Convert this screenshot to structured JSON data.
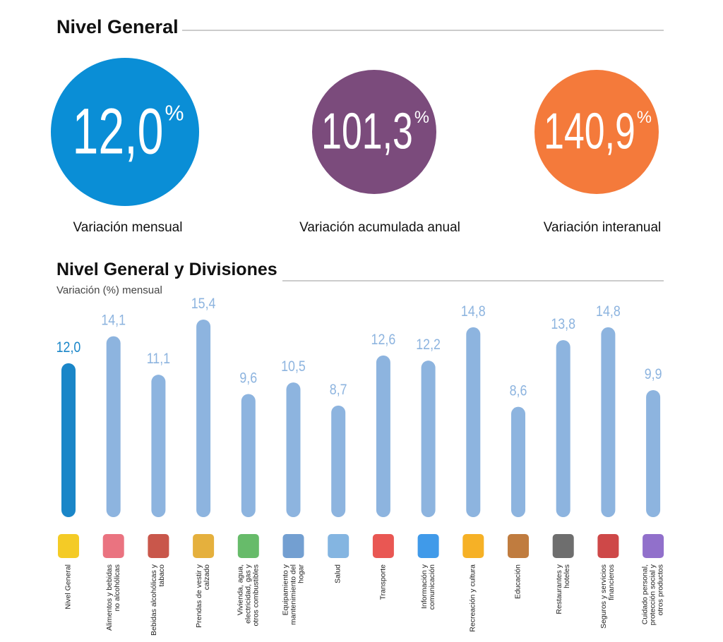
{
  "header": {
    "title": "Nivel General"
  },
  "kpis": [
    {
      "value": 12.0,
      "value_label": "12,0",
      "unit": "%",
      "caption": "Variación mensual",
      "color": "#0a8ed6"
    },
    {
      "value": 101.3,
      "value_label": "101,3",
      "unit": "%",
      "caption": "Variación acumulada anual",
      "color": "#7b4b7c"
    },
    {
      "value": 140.9,
      "value_label": "140,9",
      "unit": "%",
      "caption": "Variación interanual",
      "color": "#f47a3b"
    }
  ],
  "chart_data": {
    "type": "bar",
    "title": "Nivel General y Divisiones",
    "subtitle": "Variación (%) mensual",
    "categories": [
      "Nivel General",
      "Alimentos y bebidas no alcohólicas",
      "Bebidas alcohólicas y tabaco",
      "Prendas de vestir y calzado",
      "Vivienda, agua, electricidad, gas y otros combustibles",
      "Equipamiento y mantenimiento del hogar",
      "Salud",
      "Transporte",
      "Información y comunicación",
      "Recreación y cultura",
      "Educación",
      "Restaurantes y hoteles",
      "Seguros y servicios financieros",
      "Cuidado personal, protección social y otros productos"
    ],
    "values": [
      12.0,
      14.1,
      11.1,
      15.4,
      9.6,
      10.5,
      8.7,
      12.6,
      12.2,
      14.8,
      8.6,
      13.8,
      14.8,
      9.9
    ],
    "value_labels": [
      "12,0",
      "14,1",
      "11,1",
      "15,4",
      "9,6",
      "10,5",
      "8,7",
      "12,6",
      "12,2",
      "14,8",
      "8,6",
      "13,8",
      "14,8",
      "9,9"
    ],
    "colors": [
      "#1a86c8",
      "#8db4df",
      "#8db4df",
      "#8db4df",
      "#8db4df",
      "#8db4df",
      "#8db4df",
      "#8db4df",
      "#8db4df",
      "#8db4df",
      "#8db4df",
      "#8db4df",
      "#8db4df",
      "#8db4df"
    ]
  }
}
